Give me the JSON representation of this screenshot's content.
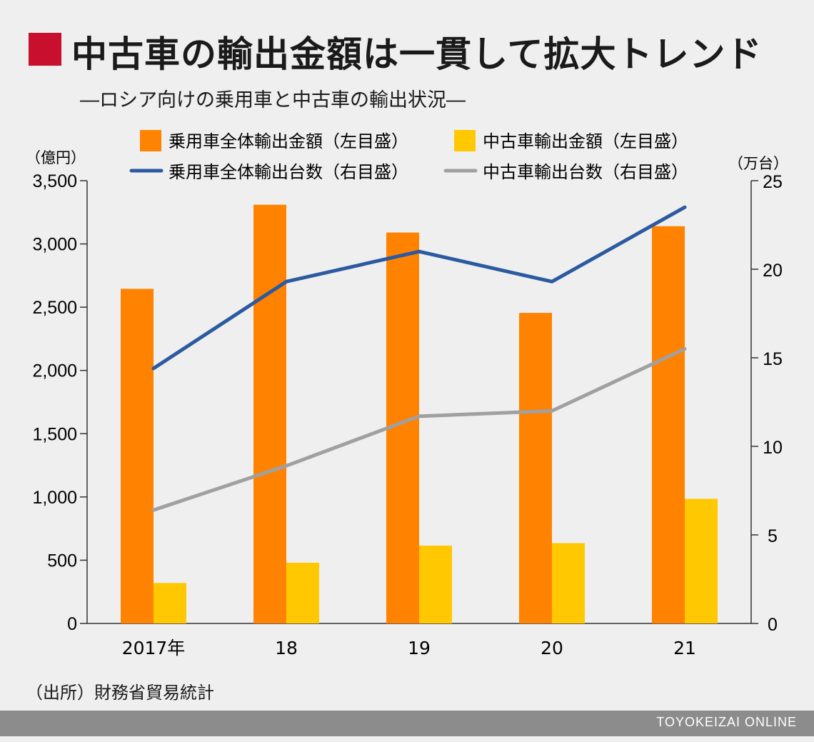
{
  "header": {
    "title": "中古車の輸出金額は一貫して拡大トレンド",
    "subtitle": "―ロシア向けの乗用車と中古車の輸出状況―",
    "title_color": "#c8102e"
  },
  "chart_data": {
    "type": "bar",
    "categories": [
      "2017年",
      "18",
      "19",
      "20",
      "21"
    ],
    "series": [
      {
        "name": "乗用車全体輸出金額（左目盛）",
        "kind": "bar",
        "axis": "left",
        "color": "#ff8200",
        "values": [
          2645,
          3310,
          3090,
          2455,
          3140
        ]
      },
      {
        "name": "中古車輸出金額（左目盛）",
        "kind": "bar",
        "axis": "left",
        "color": "#ffc800",
        "values": [
          320,
          480,
          615,
          635,
          985
        ]
      },
      {
        "name": "乗用車全体輸出台数（右目盛）",
        "kind": "line",
        "axis": "right",
        "color": "#2c5aa0",
        "values": [
          14.4,
          19.3,
          21.0,
          19.3,
          23.5
        ]
      },
      {
        "name": "中古車輸出台数（右目盛）",
        "kind": "line",
        "axis": "right",
        "color": "#a0a0a0",
        "values": [
          6.4,
          8.9,
          11.7,
          12.0,
          15.5
        ]
      }
    ],
    "left_axis": {
      "label": "（億円）",
      "ylim": [
        0,
        3500
      ],
      "ticks": [
        0,
        500,
        1000,
        1500,
        2000,
        2500,
        3000,
        3500
      ],
      "tick_labels": [
        "0",
        "500",
        "1,000",
        "1,500",
        "2,000",
        "2,500",
        "3,000",
        "3,500"
      ]
    },
    "right_axis": {
      "label": "（万台）",
      "ylim": [
        0,
        25
      ],
      "ticks": [
        0,
        5,
        10,
        15,
        20,
        25
      ],
      "tick_labels": [
        "0",
        "5",
        "10",
        "15",
        "20",
        "25"
      ]
    },
    "grid": false,
    "legend_position": "top"
  },
  "source": "（出所）財務省貿易統計",
  "footer": "TOYOKEIZAI ONLINE"
}
